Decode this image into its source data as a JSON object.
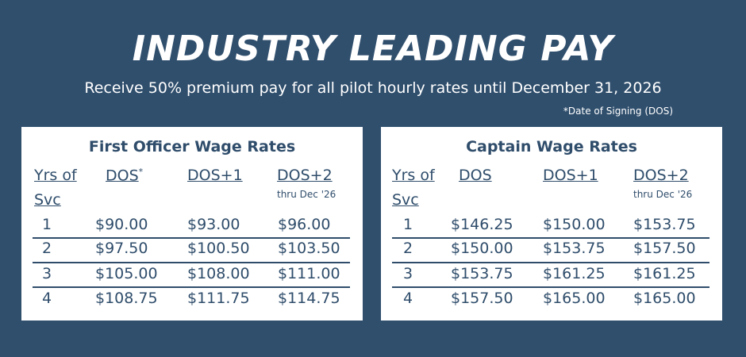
{
  "header": {
    "title": "INDUSTRY LEADING PAY",
    "subtitle": "Receive 50% premium pay for all pilot hourly rates until December 31, 2026",
    "note": "*Date of Signing (DOS)"
  },
  "tables": [
    {
      "title": "First Officer Wage Rates",
      "columns": [
        {
          "label": "Yrs of Svc"
        },
        {
          "label": "DOS",
          "mark": "*"
        },
        {
          "label": "DOS+1"
        },
        {
          "label": "DOS+2",
          "sub": "thru Dec '26"
        }
      ],
      "rows": [
        [
          "1",
          "$90.00",
          "$93.00",
          "$96.00"
        ],
        [
          "2",
          "$97.50",
          "$100.50",
          "$103.50"
        ],
        [
          "3",
          "$105.00",
          "$108.00",
          "$111.00"
        ],
        [
          "4",
          "$108.75",
          "$111.75",
          "$114.75"
        ]
      ]
    },
    {
      "title": "Captain Wage Rates",
      "columns": [
        {
          "label": "Yrs of Svc"
        },
        {
          "label": "DOS"
        },
        {
          "label": "DOS+1"
        },
        {
          "label": "DOS+2",
          "sub": "thru Dec '26"
        }
      ],
      "rows": [
        [
          "1",
          "$146.25",
          "$150.00",
          "$153.75"
        ],
        [
          "2",
          "$150.00",
          "$153.75",
          "$157.50"
        ],
        [
          "3",
          "$153.75",
          "$161.25",
          "$161.25"
        ],
        [
          "4",
          "$157.50",
          "$165.00",
          "$165.00"
        ]
      ]
    }
  ]
}
